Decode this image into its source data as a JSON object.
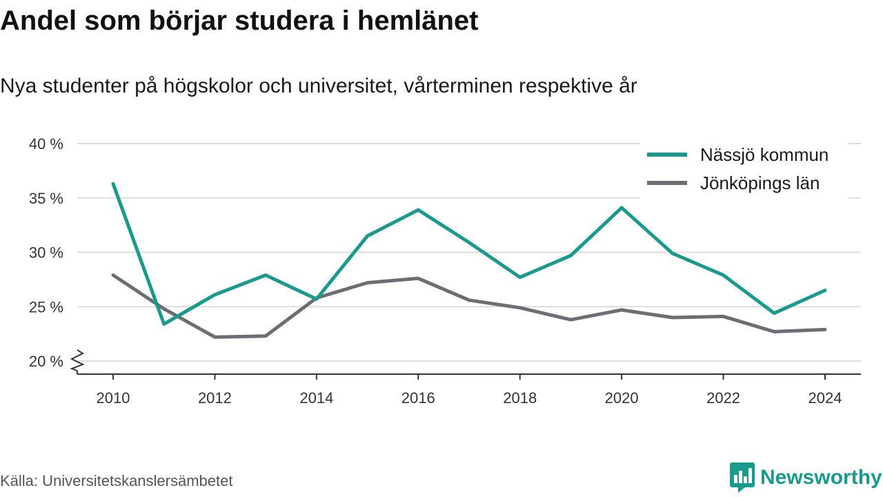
{
  "header": {
    "title": "Andel som börjar studera i hemlänet",
    "subtitle": "Nya studenter på högskolor och universitet, vårterminen respektive år"
  },
  "footer": {
    "source": "Källa: Universitetskanslersämbetet",
    "brand": "Newsworthy"
  },
  "colors": {
    "nassjo": "#1a9a8c",
    "lan": "#6e6d75",
    "grid": "#dddddd",
    "axis": "#333333",
    "brand": "#1a9a8c"
  },
  "icons": {
    "brand_logo": "bar-chart-speech-bubble-icon",
    "axis_break": "zigzag-axis-break-icon"
  },
  "chart_data": {
    "type": "line",
    "title": "Andel som börjar studera i hemlänet",
    "subtitle": "Nya studenter på högskolor och universitet, vårterminen respektive år",
    "xlabel": "",
    "ylabel": "",
    "x": [
      2010,
      2011,
      2012,
      2013,
      2014,
      2015,
      2016,
      2017,
      2018,
      2019,
      2020,
      2021,
      2022,
      2023,
      2024
    ],
    "xticks": [
      "2010",
      "2012",
      "2014",
      "2016",
      "2018",
      "2020",
      "2022",
      "2024"
    ],
    "yticks": [
      "20 %",
      "25 %",
      "30 %",
      "35 %",
      "40 %"
    ],
    "ytick_values": [
      20,
      25,
      30,
      35,
      40
    ],
    "ylim": [
      20,
      40
    ],
    "y_axis_break": true,
    "grid": true,
    "legend_position": "top-right",
    "series": [
      {
        "name": "Nässjö kommun",
        "color": "#1a9a8c",
        "values": [
          36.3,
          23.4,
          26.1,
          27.9,
          25.7,
          31.5,
          33.9,
          30.9,
          27.7,
          29.7,
          34.1,
          29.9,
          27.9,
          24.4,
          26.5
        ]
      },
      {
        "name": "Jönköpings län",
        "color": "#6e6d75",
        "values": [
          27.9,
          24.8,
          22.2,
          22.3,
          25.8,
          27.2,
          27.6,
          25.6,
          24.9,
          23.8,
          24.7,
          24.0,
          24.1,
          22.7,
          22.9
        ]
      }
    ]
  }
}
